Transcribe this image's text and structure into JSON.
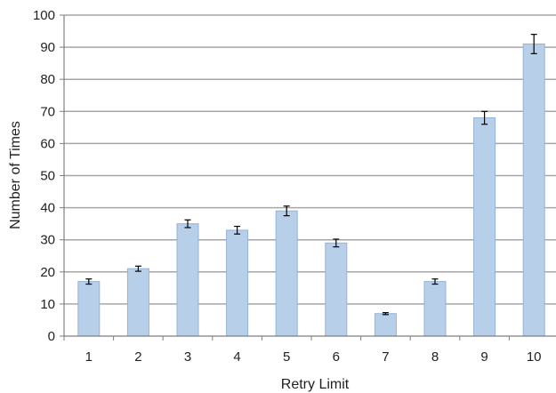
{
  "chart_data": {
    "type": "bar",
    "title": "",
    "xlabel": "Retry Limit",
    "ylabel": "Number of Times",
    "categories": [
      "1",
      "2",
      "3",
      "4",
      "5",
      "6",
      "7",
      "8",
      "9",
      "10"
    ],
    "values": [
      17,
      21,
      35,
      33,
      39,
      29,
      7,
      17,
      68,
      91
    ],
    "error": [
      0.8,
      0.8,
      1.2,
      1.2,
      1.5,
      1.2,
      0.3,
      0.8,
      2.0,
      3.0
    ],
    "ylim": [
      0,
      100
    ],
    "yticks": [
      0,
      10,
      20,
      30,
      40,
      50,
      60,
      70,
      80,
      90,
      100
    ],
    "grid": true,
    "legend": "none",
    "colors": {
      "bar_fill": "#b8cfe9",
      "bar_stroke": "#95b3d7",
      "grid": "#a6a6a6",
      "axis": "#7f7f7f",
      "error_bar": "#000000"
    }
  }
}
